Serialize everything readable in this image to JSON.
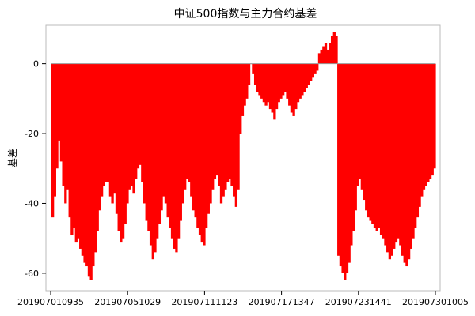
{
  "chart_data": {
    "type": "bar",
    "title": "中证500指数与主力合约基差",
    "xlabel": "",
    "ylabel": "基差",
    "ylim": [
      -65,
      11
    ],
    "yticks": [
      0,
      -20,
      -40,
      -60
    ],
    "grid": false,
    "legend": "none",
    "bar_color": "#ff0000",
    "zero_line_color": "#999999",
    "x_tick_labels": [
      "201907010935",
      "201907051029",
      "201907111123",
      "201907171347",
      "201907231441",
      "201907301005"
    ],
    "series": [
      {
        "values": [
          -44,
          -38,
          -30,
          -22,
          -28,
          -35,
          -40,
          -36,
          -44,
          -49,
          -47,
          -51,
          -50,
          -53,
          -55,
          -57,
          -58,
          -61,
          -62,
          -58,
          -54,
          -48,
          -42,
          -38,
          -35,
          -34,
          -34,
          -38,
          -40,
          -37,
          -43,
          -48,
          -51,
          -50,
          -46,
          -40,
          -36,
          -35,
          -37,
          -33,
          -30,
          -29,
          -34,
          -40,
          -45,
          -48,
          -52,
          -56,
          -54,
          -50,
          -46,
          -42,
          -38,
          -40,
          -44,
          -47,
          -50,
          -53,
          -54,
          -50,
          -45,
          -40,
          -36,
          -33,
          -34,
          -38,
          -42,
          -44,
          -47,
          -49,
          -51,
          -52,
          -47,
          -43,
          -40,
          -36,
          -33,
          -32,
          -35,
          -40,
          -38,
          -36,
          -34,
          -33,
          -35,
          -38,
          -41,
          -36,
          -20,
          -15,
          -12,
          -10,
          -6,
          0,
          -3,
          -6,
          -8,
          -9,
          -10,
          -11,
          -12,
          -11,
          -13,
          -14,
          -16,
          -13,
          -11,
          -10,
          -9,
          -8,
          -10,
          -12,
          -14,
          -15,
          -13,
          -11,
          -10,
          -9,
          -8,
          -7,
          -6,
          -5,
          -4,
          -3,
          -2,
          3,
          4,
          5,
          6,
          4,
          6,
          8,
          9,
          8,
          -55,
          -58,
          -60,
          -62,
          -60,
          -57,
          -52,
          -48,
          -42,
          -35,
          -33,
          -36,
          -39,
          -42,
          -44,
          -45,
          -46,
          -47,
          -48,
          -47,
          -49,
          -50,
          -52,
          -54,
          -56,
          -55,
          -53,
          -51,
          -50,
          -52,
          -55,
          -57,
          -58,
          -56,
          -53,
          -50,
          -47,
          -44,
          -41,
          -38,
          -36,
          -35,
          -34,
          -33,
          -32,
          -30
        ]
      }
    ]
  }
}
